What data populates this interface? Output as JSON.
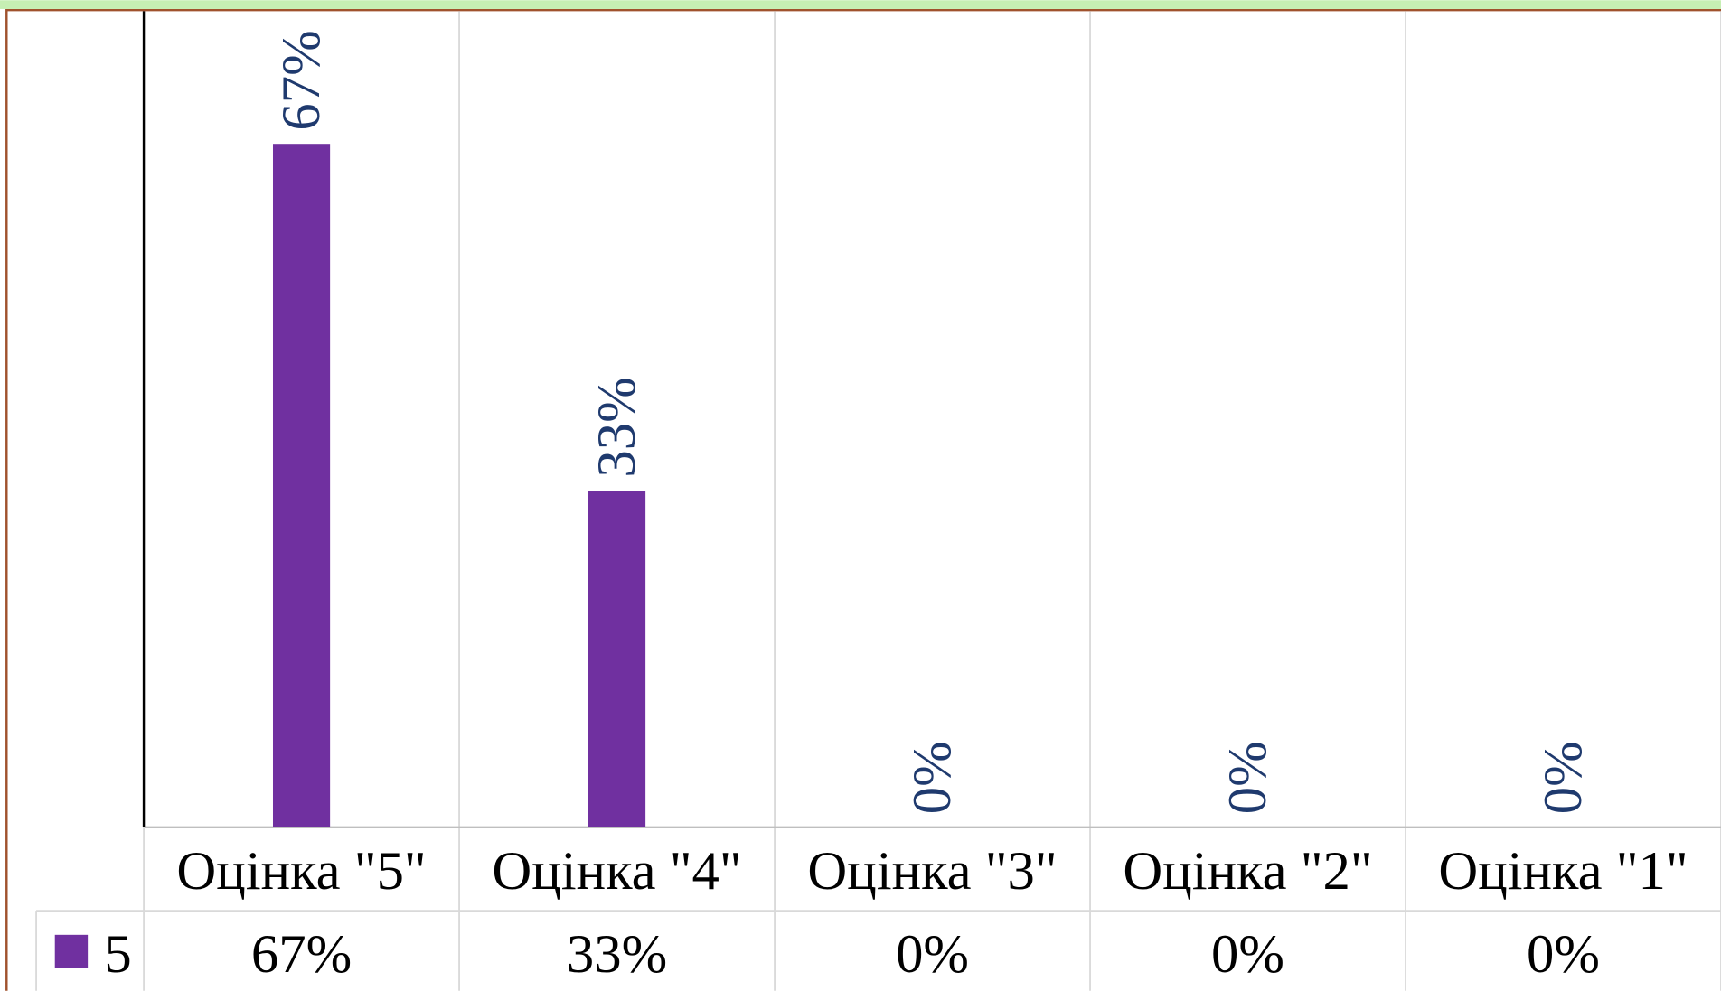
{
  "chart_data": {
    "type": "bar",
    "categories": [
      "Оцінка \"5\"",
      "Оцінка \"4\"",
      "Оцінка \"3\"",
      "Оцінка \"2\"",
      "Оцінка \"1\""
    ],
    "series": [
      {
        "name": "5",
        "color": "#7030a0",
        "values": [
          67,
          33,
          0,
          0,
          0
        ],
        "value_labels": [
          "67%",
          "33%",
          "0%",
          "0%",
          "0%"
        ]
      }
    ],
    "ylim": [
      0,
      80
    ],
    "label_color": "#1f3a6e",
    "data_table": true
  }
}
